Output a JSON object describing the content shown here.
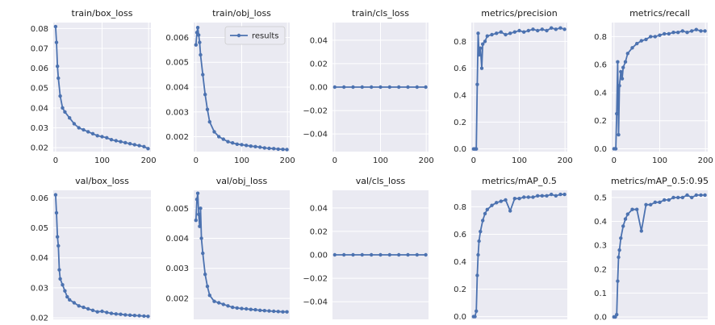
{
  "figure": {
    "legend_label": "results",
    "colors": {
      "axes_bg": "#eaeaf2",
      "grid": "#ffffff",
      "series": "#4c72b0",
      "text": "#262626"
    }
  },
  "chart_data": [
    {
      "type": "line",
      "title": "train/box_loss",
      "xlim": [
        -5,
        205
      ],
      "ylim": [
        0.018,
        0.083
      ],
      "xticks": [
        0,
        100,
        200
      ],
      "xtick_labels": [
        "0",
        "100",
        "200"
      ],
      "yticks": [
        0.02,
        0.03,
        0.04,
        0.05,
        0.06,
        0.07,
        0.08
      ],
      "ytick_labels": [
        "0.02",
        "0.03",
        "0.04",
        "0.05",
        "0.06",
        "0.07",
        "0.08"
      ],
      "series": [
        {
          "name": "results",
          "x": [
            0,
            2,
            4,
            6,
            10,
            15,
            20,
            30,
            40,
            50,
            60,
            70,
            80,
            90,
            100,
            110,
            120,
            130,
            140,
            150,
            160,
            170,
            180,
            190,
            199
          ],
          "y": [
            0.081,
            0.073,
            0.061,
            0.055,
            0.046,
            0.04,
            0.038,
            0.035,
            0.032,
            0.03,
            0.029,
            0.028,
            0.027,
            0.026,
            0.0255,
            0.025,
            0.024,
            0.0235,
            0.023,
            0.0225,
            0.022,
            0.0215,
            0.021,
            0.0205,
            0.0195
          ]
        }
      ]
    },
    {
      "type": "line",
      "title": "train/obj_loss",
      "legend": "upper right",
      "xlim": [
        -5,
        205
      ],
      "ylim": [
        0.0014,
        0.0066
      ],
      "xticks": [
        0,
        100,
        200
      ],
      "xtick_labels": [
        "0",
        "100",
        "200"
      ],
      "yticks": [
        0.002,
        0.003,
        0.004,
        0.005,
        0.006
      ],
      "ytick_labels": [
        "0.002",
        "0.003",
        "0.004",
        "0.005",
        "0.006"
      ],
      "series": [
        {
          "name": "results",
          "x": [
            0,
            2,
            4,
            6,
            8,
            10,
            15,
            20,
            25,
            30,
            40,
            50,
            60,
            70,
            80,
            90,
            100,
            110,
            120,
            130,
            140,
            150,
            160,
            170,
            180,
            190,
            199
          ],
          "y": [
            0.0057,
            0.0062,
            0.0064,
            0.0061,
            0.0058,
            0.0053,
            0.0045,
            0.0037,
            0.0031,
            0.0026,
            0.0022,
            0.002,
            0.0019,
            0.0018,
            0.00175,
            0.0017,
            0.00168,
            0.00165,
            0.00162,
            0.0016,
            0.00158,
            0.00155,
            0.00153,
            0.00152,
            0.0015,
            0.00149,
            0.00148
          ]
        }
      ]
    },
    {
      "type": "line",
      "title": "train/cls_loss",
      "xlim": [
        -5,
        205
      ],
      "ylim": [
        -0.055,
        0.055
      ],
      "xticks": [
        0,
        100,
        200
      ],
      "xtick_labels": [
        "0",
        "100",
        "200"
      ],
      "yticks": [
        -0.04,
        -0.02,
        0.0,
        0.02,
        0.04
      ],
      "ytick_labels": [
        "−0.04",
        "−0.02",
        "0.00",
        "0.02",
        "0.04"
      ],
      "series": [
        {
          "name": "results",
          "x": [
            0,
            20,
            40,
            60,
            80,
            100,
            120,
            140,
            160,
            180,
            199
          ],
          "y": [
            0,
            0,
            0,
            0,
            0,
            0,
            0,
            0,
            0,
            0,
            0
          ]
        }
      ]
    },
    {
      "type": "line",
      "title": "metrics/precision",
      "xlim": [
        -5,
        205
      ],
      "ylim": [
        -0.02,
        0.94
      ],
      "xticks": [
        0,
        100,
        200
      ],
      "xtick_labels": [
        "0",
        "100",
        "200"
      ],
      "yticks": [
        0.0,
        0.2,
        0.4,
        0.6,
        0.8
      ],
      "ytick_labels": [
        "0.0",
        "0.2",
        "0.4",
        "0.6",
        "0.8"
      ],
      "series": [
        {
          "name": "results",
          "x": [
            0,
            3,
            6,
            8,
            10,
            12,
            15,
            18,
            20,
            25,
            30,
            40,
            50,
            60,
            70,
            80,
            90,
            100,
            110,
            120,
            130,
            140,
            150,
            160,
            170,
            180,
            190,
            199
          ],
          "y": [
            0.0,
            0.0,
            0.0,
            0.48,
            0.86,
            0.7,
            0.75,
            0.6,
            0.78,
            0.8,
            0.84,
            0.85,
            0.86,
            0.87,
            0.85,
            0.86,
            0.87,
            0.88,
            0.87,
            0.88,
            0.89,
            0.88,
            0.89,
            0.88,
            0.9,
            0.89,
            0.9,
            0.89
          ]
        }
      ]
    },
    {
      "type": "line",
      "title": "metrics/recall",
      "xlim": [
        -5,
        205
      ],
      "ylim": [
        -0.02,
        0.9
      ],
      "xticks": [
        0,
        100,
        200
      ],
      "xtick_labels": [
        "0",
        "100",
        "200"
      ],
      "yticks": [
        0.0,
        0.2,
        0.4,
        0.6,
        0.8
      ],
      "ytick_labels": [
        "0.0",
        "0.2",
        "0.4",
        "0.6",
        "0.8"
      ],
      "series": [
        {
          "name": "results",
          "x": [
            0,
            4,
            6,
            8,
            10,
            12,
            15,
            18,
            20,
            25,
            30,
            40,
            50,
            60,
            70,
            80,
            90,
            100,
            110,
            120,
            130,
            140,
            150,
            160,
            170,
            180,
            190,
            199
          ],
          "y": [
            0.0,
            0.0,
            0.25,
            0.62,
            0.1,
            0.45,
            0.55,
            0.5,
            0.58,
            0.62,
            0.68,
            0.72,
            0.75,
            0.77,
            0.78,
            0.8,
            0.8,
            0.81,
            0.82,
            0.82,
            0.83,
            0.83,
            0.84,
            0.83,
            0.84,
            0.85,
            0.84,
            0.84
          ]
        }
      ]
    },
    {
      "type": "line",
      "title": "val/box_loss",
      "xlim": [
        -5,
        205
      ],
      "ylim": [
        0.0195,
        0.0625
      ],
      "xticks": [],
      "xtick_labels": [],
      "yticks": [
        0.02,
        0.03,
        0.04,
        0.05,
        0.06
      ],
      "ytick_labels": [
        "0.02",
        "0.03",
        "0.04",
        "0.05",
        "0.06"
      ],
      "series": [
        {
          "name": "results",
          "x": [
            0,
            2,
            4,
            6,
            8,
            10,
            15,
            20,
            25,
            30,
            40,
            50,
            60,
            70,
            80,
            90,
            100,
            110,
            120,
            130,
            140,
            150,
            160,
            170,
            180,
            190,
            199
          ],
          "y": [
            0.061,
            0.055,
            0.047,
            0.044,
            0.036,
            0.033,
            0.031,
            0.029,
            0.027,
            0.026,
            0.025,
            0.024,
            0.0235,
            0.023,
            0.0225,
            0.022,
            0.0222,
            0.0218,
            0.0215,
            0.0213,
            0.0212,
            0.021,
            0.0209,
            0.0208,
            0.0207,
            0.0206,
            0.0205
          ]
        }
      ]
    },
    {
      "type": "line",
      "title": "val/obj_loss",
      "xlim": [
        -5,
        205
      ],
      "ylim": [
        0.0013,
        0.0056
      ],
      "xticks": [],
      "xtick_labels": [],
      "yticks": [
        0.002,
        0.003,
        0.004,
        0.005
      ],
      "ytick_labels": [
        "0.002",
        "0.003",
        "0.004",
        "0.005"
      ],
      "series": [
        {
          "name": "results",
          "x": [
            0,
            2,
            4,
            6,
            8,
            10,
            12,
            15,
            20,
            25,
            30,
            40,
            50,
            60,
            70,
            80,
            90,
            100,
            110,
            120,
            130,
            140,
            150,
            160,
            170,
            180,
            190,
            199
          ],
          "y": [
            0.0046,
            0.0053,
            0.0055,
            0.0048,
            0.0044,
            0.005,
            0.004,
            0.0035,
            0.0028,
            0.0024,
            0.0021,
            0.0019,
            0.00185,
            0.0018,
            0.00175,
            0.0017,
            0.00168,
            0.00166,
            0.00165,
            0.00163,
            0.00162,
            0.0016,
            0.00159,
            0.00158,
            0.00157,
            0.00156,
            0.00155,
            0.00155
          ]
        }
      ]
    },
    {
      "type": "line",
      "title": "val/cls_loss",
      "xlim": [
        -5,
        205
      ],
      "ylim": [
        -0.055,
        0.055
      ],
      "xticks": [],
      "xtick_labels": [],
      "yticks": [
        -0.04,
        -0.02,
        0.0,
        0.02,
        0.04
      ],
      "ytick_labels": [
        "−0.04",
        "−0.02",
        "0.00",
        "0.02",
        "0.04"
      ],
      "series": [
        {
          "name": "results",
          "x": [
            0,
            20,
            40,
            60,
            80,
            100,
            120,
            140,
            160,
            180,
            199
          ],
          "y": [
            0,
            0,
            0,
            0,
            0,
            0,
            0,
            0,
            0,
            0,
            0
          ]
        }
      ]
    },
    {
      "type": "line",
      "title": "metrics/mAP_0.5",
      "xlim": [
        -5,
        205
      ],
      "ylim": [
        -0.02,
        0.92
      ],
      "xticks": [],
      "xtick_labels": [],
      "yticks": [
        0.0,
        0.2,
        0.4,
        0.6,
        0.8
      ],
      "ytick_labels": [
        "0.0",
        "0.2",
        "0.4",
        "0.6",
        "0.8"
      ],
      "series": [
        {
          "name": "results",
          "x": [
            0,
            3,
            6,
            8,
            10,
            12,
            15,
            20,
            25,
            30,
            40,
            50,
            60,
            70,
            80,
            90,
            100,
            110,
            120,
            130,
            140,
            150,
            160,
            170,
            180,
            190,
            199
          ],
          "y": [
            0.0,
            0.0,
            0.04,
            0.3,
            0.45,
            0.55,
            0.62,
            0.7,
            0.75,
            0.78,
            0.81,
            0.83,
            0.84,
            0.85,
            0.77,
            0.86,
            0.86,
            0.87,
            0.87,
            0.87,
            0.88,
            0.88,
            0.88,
            0.89,
            0.88,
            0.89,
            0.89
          ]
        }
      ]
    },
    {
      "type": "line",
      "title": "metrics/mAP_0.5:0.95",
      "xlim": [
        -5,
        205
      ],
      "ylim": [
        -0.01,
        0.53
      ],
      "xticks": [],
      "xtick_labels": [],
      "yticks": [
        0.0,
        0.1,
        0.2,
        0.3,
        0.4,
        0.5
      ],
      "ytick_labels": [
        "0.0",
        "0.1",
        "0.2",
        "0.3",
        "0.4",
        "0.5"
      ],
      "series": [
        {
          "name": "results",
          "x": [
            0,
            3,
            6,
            8,
            10,
            12,
            15,
            20,
            25,
            30,
            40,
            50,
            60,
            70,
            80,
            90,
            100,
            110,
            120,
            130,
            140,
            150,
            160,
            170,
            180,
            190,
            199
          ],
          "y": [
            0.0,
            0.0,
            0.01,
            0.15,
            0.25,
            0.28,
            0.33,
            0.38,
            0.41,
            0.43,
            0.45,
            0.45,
            0.36,
            0.47,
            0.47,
            0.48,
            0.48,
            0.49,
            0.49,
            0.5,
            0.5,
            0.5,
            0.51,
            0.5,
            0.51,
            0.51,
            0.51
          ]
        }
      ]
    }
  ]
}
